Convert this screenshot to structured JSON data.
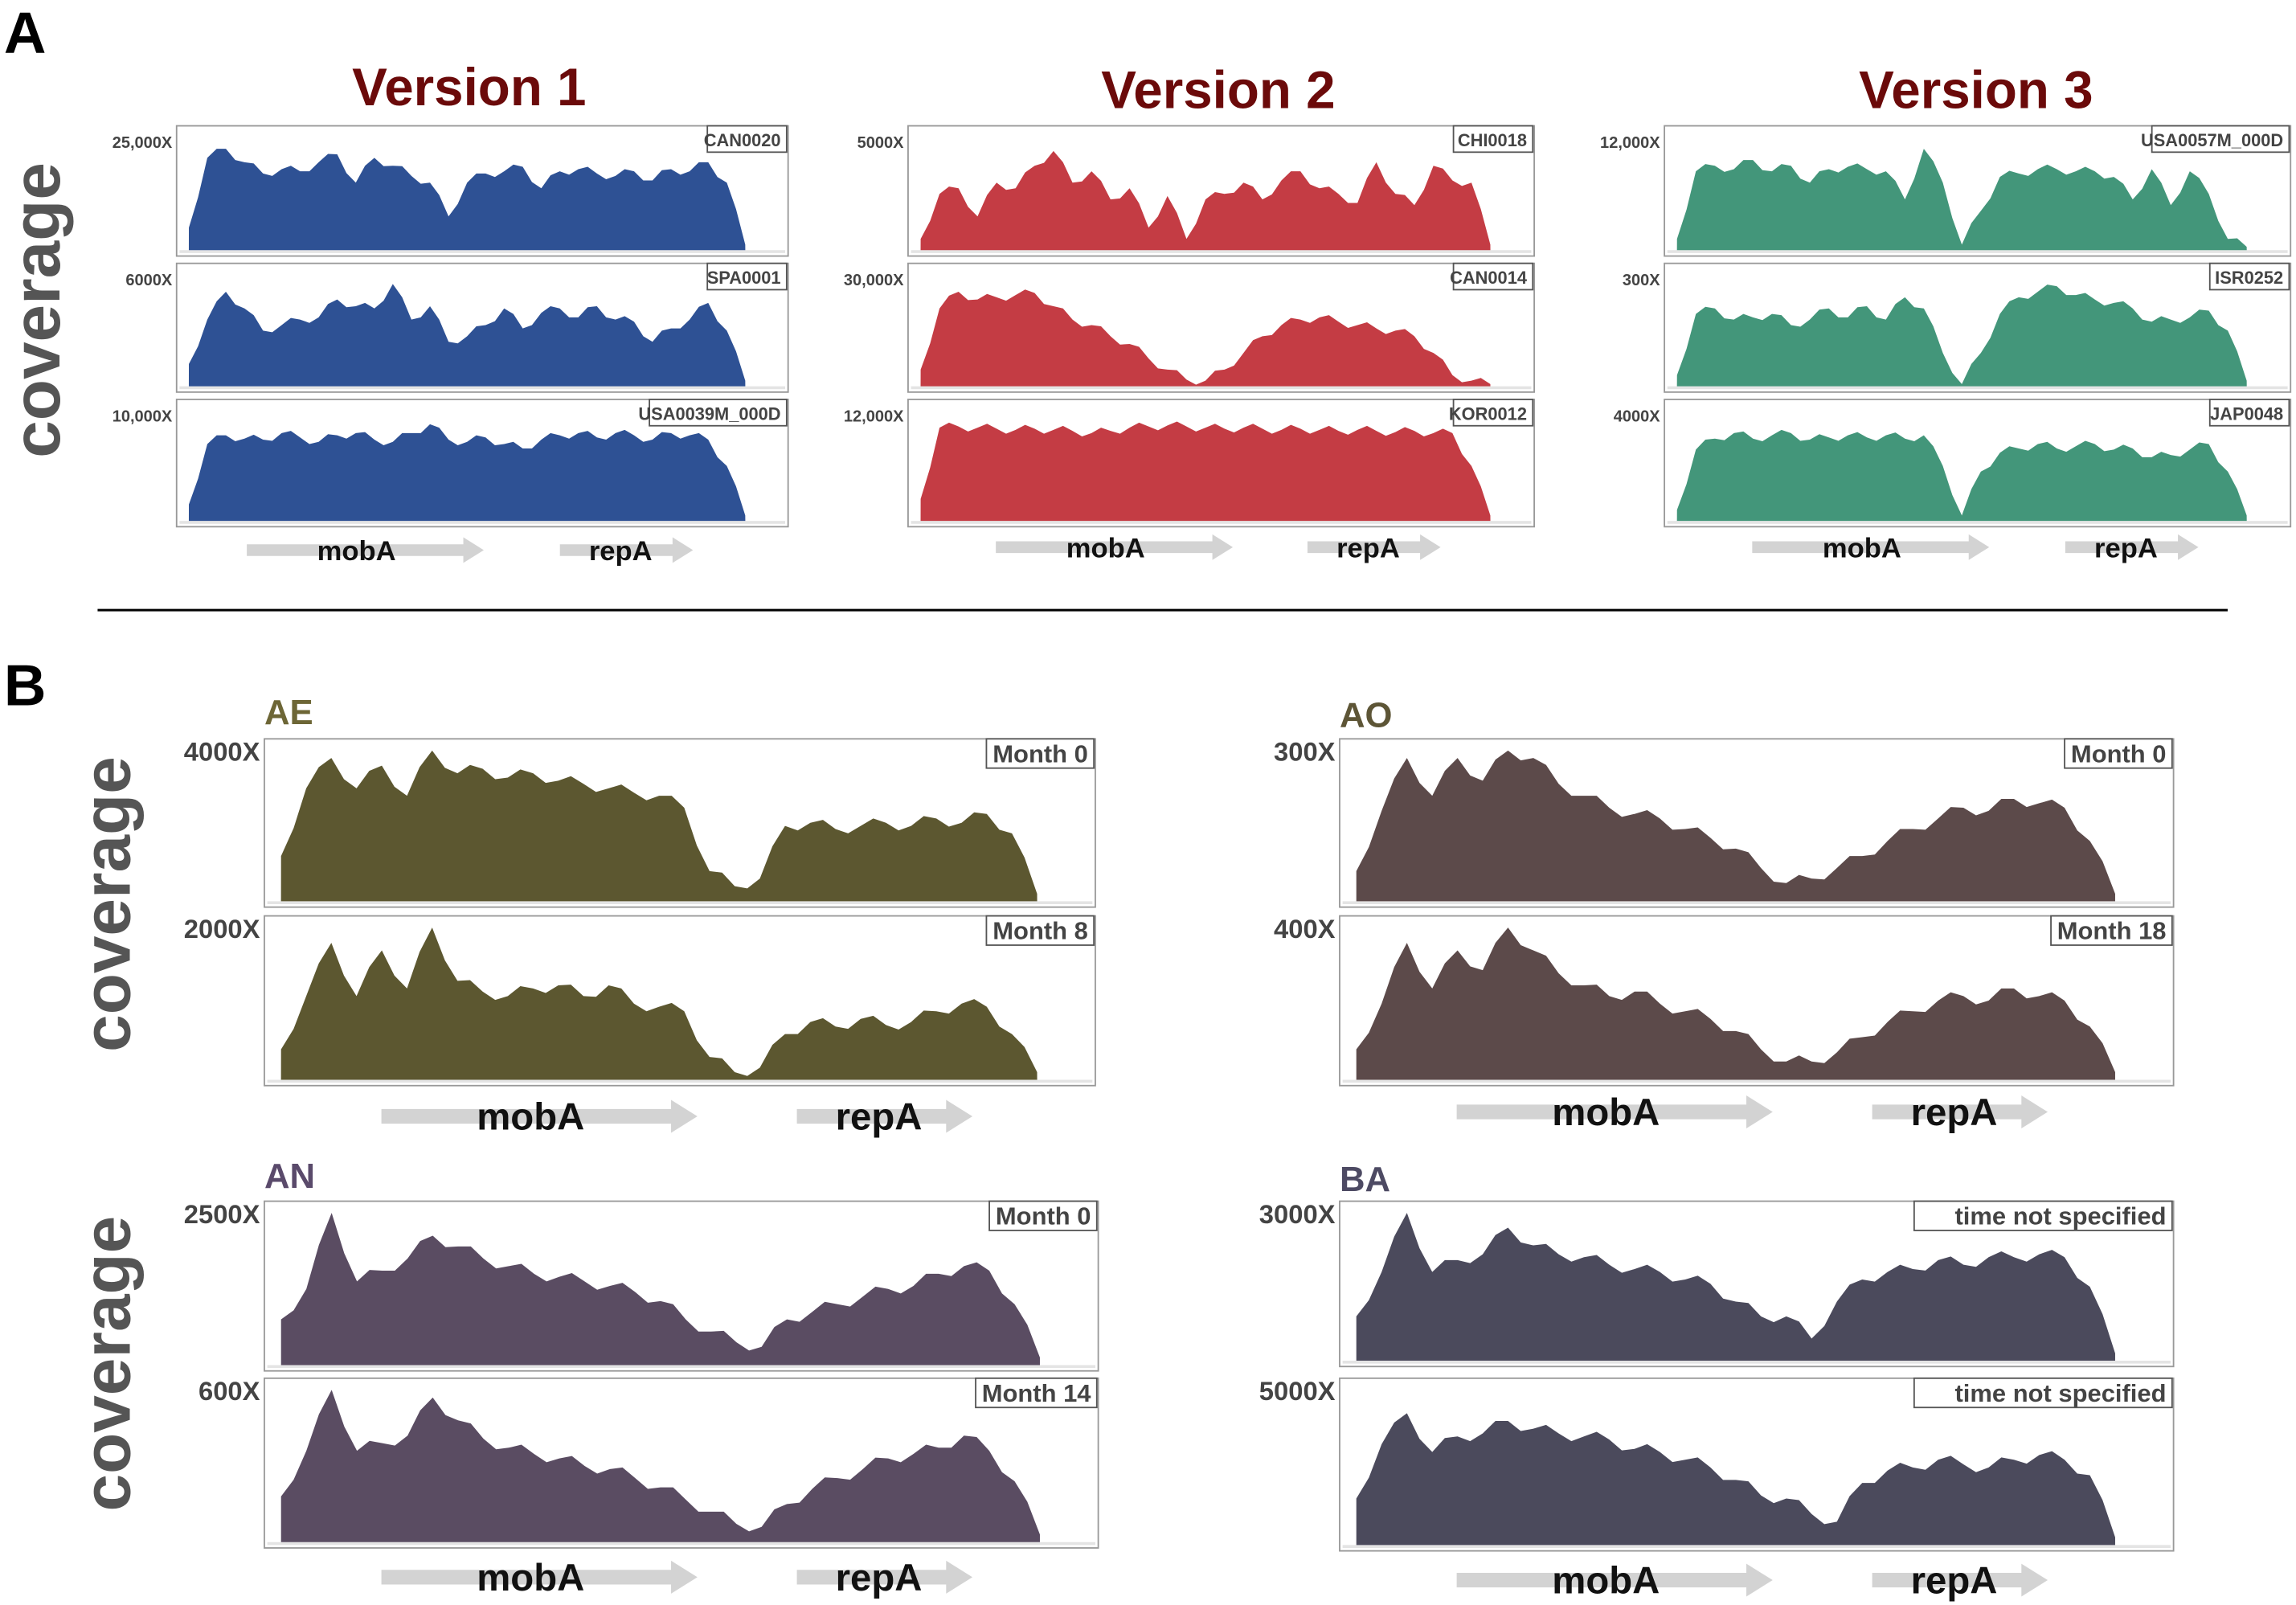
{
  "panel_labels": {
    "a": "A",
    "b": "B"
  },
  "y_axis_label": "coverage",
  "genes": [
    "mobA",
    "repA"
  ],
  "chart_data": [
    {
      "type": "area",
      "panel": "A",
      "title": "Version 1",
      "title_color": "#6b0a0a",
      "color": "#2e5194",
      "tracks": [
        {
          "sample": "CAN0020",
          "ymax_label": "25,000X",
          "profile": [
            0.2,
            0.82,
            0.9,
            0.78,
            0.68,
            0.72,
            0.7,
            0.78,
            0.85,
            0.6,
            0.82,
            0.75,
            0.66,
            0.6,
            0.3,
            0.6,
            0.68,
            0.7,
            0.74,
            0.55,
            0.7,
            0.72,
            0.68,
            0.66,
            0.7,
            0.62,
            0.72,
            0.7,
            0.78,
            0.6,
            0.05
          ]
        },
        {
          "sample": "SPA0001",
          "ymax_label": "6000X",
          "profile": [
            0.2,
            0.6,
            0.85,
            0.7,
            0.5,
            0.55,
            0.6,
            0.62,
            0.78,
            0.72,
            0.7,
            0.92,
            0.6,
            0.72,
            0.4,
            0.45,
            0.55,
            0.7,
            0.52,
            0.66,
            0.7,
            0.62,
            0.72,
            0.6,
            0.58,
            0.4,
            0.52,
            0.6,
            0.75,
            0.5,
            0.05
          ]
        },
        {
          "sample": "USA0039M_000D",
          "ymax_label": "10,000X",
          "profile": [
            0.15,
            0.7,
            0.78,
            0.75,
            0.74,
            0.8,
            0.76,
            0.72,
            0.78,
            0.8,
            0.74,
            0.72,
            0.8,
            0.88,
            0.74,
            0.72,
            0.76,
            0.7,
            0.66,
            0.74,
            0.78,
            0.8,
            0.76,
            0.8,
            0.78,
            0.74,
            0.8,
            0.78,
            0.74,
            0.5,
            0.05
          ]
        }
      ]
    },
    {
      "type": "area",
      "panel": "A",
      "title": "Version 2",
      "title_color": "#6b0a0a",
      "color": "#c43c44",
      "tracks": [
        {
          "sample": "CHI0018",
          "ymax_label": "5000X",
          "profile": [
            0.1,
            0.5,
            0.55,
            0.3,
            0.6,
            0.55,
            0.75,
            0.88,
            0.6,
            0.7,
            0.45,
            0.55,
            0.2,
            0.48,
            0.1,
            0.45,
            0.5,
            0.6,
            0.45,
            0.62,
            0.7,
            0.55,
            0.5,
            0.42,
            0.78,
            0.5,
            0.4,
            0.75,
            0.62,
            0.6,
            0.05
          ]
        },
        {
          "sample": "CAN0014",
          "ymax_label": "30,000X",
          "profile": [
            0.15,
            0.7,
            0.85,
            0.78,
            0.8,
            0.82,
            0.84,
            0.72,
            0.6,
            0.55,
            0.45,
            0.38,
            0.25,
            0.15,
            0.06,
            0.05,
            0.15,
            0.3,
            0.45,
            0.55,
            0.6,
            0.62,
            0.58,
            0.55,
            0.52,
            0.5,
            0.45,
            0.3,
            0.1,
            0.05,
            0.02
          ]
        },
        {
          "sample": "KOR0012",
          "ymax_label": "12,000X",
          "profile": [
            0.2,
            0.85,
            0.86,
            0.85,
            0.84,
            0.83,
            0.84,
            0.83,
            0.82,
            0.8,
            0.82,
            0.85,
            0.86,
            0.87,
            0.86,
            0.85,
            0.84,
            0.85,
            0.84,
            0.83,
            0.84,
            0.83,
            0.82,
            0.83,
            0.82,
            0.81,
            0.82,
            0.8,
            0.8,
            0.5,
            0.05
          ]
        }
      ]
    },
    {
      "type": "area",
      "panel": "A",
      "title": "Version 3",
      "title_color": "#6b0a0a",
      "color": "#43967a",
      "tracks": [
        {
          "sample": "USA0057M_000D",
          "ymax_label": "12,000X",
          "profile": [
            0.1,
            0.7,
            0.75,
            0.72,
            0.8,
            0.7,
            0.75,
            0.6,
            0.72,
            0.74,
            0.72,
            0.7,
            0.45,
            0.9,
            0.6,
            0.05,
            0.35,
            0.65,
            0.68,
            0.72,
            0.72,
            0.7,
            0.7,
            0.65,
            0.45,
            0.72,
            0.4,
            0.7,
            0.5,
            0.1,
            0.03
          ]
        },
        {
          "sample": "ISR0252",
          "ymax_label": "300X",
          "profile": [
            0.1,
            0.65,
            0.7,
            0.6,
            0.62,
            0.65,
            0.55,
            0.6,
            0.7,
            0.62,
            0.72,
            0.6,
            0.8,
            0.7,
            0.3,
            0.02,
            0.3,
            0.65,
            0.8,
            0.85,
            0.9,
            0.82,
            0.78,
            0.75,
            0.7,
            0.58,
            0.6,
            0.62,
            0.68,
            0.5,
            0.05
          ]
        },
        {
          "sample": "JAP0048",
          "ymax_label": "4000X",
          "profile": [
            0.1,
            0.65,
            0.75,
            0.8,
            0.75,
            0.78,
            0.8,
            0.74,
            0.76,
            0.78,
            0.76,
            0.78,
            0.75,
            0.78,
            0.5,
            0.05,
            0.45,
            0.62,
            0.66,
            0.7,
            0.66,
            0.68,
            0.7,
            0.65,
            0.66,
            0.58,
            0.6,
            0.65,
            0.7,
            0.45,
            0.05
          ]
        }
      ]
    },
    {
      "type": "area",
      "panel": "B",
      "title": "AE",
      "title_color": "#6d6636",
      "color": "#5c5730",
      "tracks": [
        {
          "sample": "Month 0",
          "ymax_label": "4000X",
          "profile": [
            0.3,
            0.75,
            0.95,
            0.75,
            0.9,
            0.7,
            1.0,
            0.85,
            0.88,
            0.82,
            0.85,
            0.8,
            0.78,
            0.75,
            0.72,
            0.7,
            0.62,
            0.2,
            0.1,
            0.15,
            0.5,
            0.52,
            0.48,
            0.5,
            0.52,
            0.5,
            0.55,
            0.52,
            0.58,
            0.45,
            0.05
          ]
        },
        {
          "sample": "Month 8",
          "ymax_label": "2000X",
          "profile": [
            0.2,
            0.55,
            0.9,
            0.55,
            0.85,
            0.6,
            1.0,
            0.65,
            0.58,
            0.55,
            0.6,
            0.62,
            0.55,
            0.62,
            0.5,
            0.48,
            0.45,
            0.15,
            0.05,
            0.08,
            0.3,
            0.38,
            0.35,
            0.4,
            0.36,
            0.38,
            0.45,
            0.5,
            0.48,
            0.3,
            0.05
          ]
        }
      ]
    },
    {
      "type": "area",
      "panel": "B",
      "title": "AO",
      "title_color": "#5d5536",
      "color": "#5c4a4a",
      "tracks": [
        {
          "sample": "Month 0",
          "ymax_label": "300X",
          "profile": [
            0.2,
            0.6,
            0.95,
            0.7,
            0.95,
            0.8,
            1.0,
            0.95,
            0.78,
            0.7,
            0.62,
            0.58,
            0.55,
            0.48,
            0.42,
            0.35,
            0.22,
            0.12,
            0.15,
            0.22,
            0.3,
            0.4,
            0.48,
            0.55,
            0.62,
            0.6,
            0.68,
            0.65,
            0.62,
            0.4,
            0.05
          ]
        },
        {
          "sample": "Month 18",
          "ymax_label": "400X",
          "profile": [
            0.2,
            0.5,
            0.9,
            0.6,
            0.85,
            0.72,
            1.0,
            0.85,
            0.7,
            0.62,
            0.55,
            0.58,
            0.5,
            0.45,
            0.4,
            0.32,
            0.2,
            0.12,
            0.12,
            0.18,
            0.28,
            0.38,
            0.45,
            0.52,
            0.55,
            0.52,
            0.6,
            0.55,
            0.52,
            0.35,
            0.05
          ]
        }
      ]
    },
    {
      "type": "area",
      "panel": "B",
      "title": "AN",
      "title_color": "#5a4a6b",
      "color": "#5a4c62",
      "tracks": [
        {
          "sample": "Month 0",
          "ymax_label": "2500X",
          "profile": [
            0.3,
            0.5,
            1.0,
            0.55,
            0.62,
            0.7,
            0.85,
            0.78,
            0.7,
            0.65,
            0.6,
            0.58,
            0.55,
            0.52,
            0.48,
            0.42,
            0.3,
            0.22,
            0.15,
            0.12,
            0.3,
            0.35,
            0.4,
            0.45,
            0.5,
            0.52,
            0.6,
            0.65,
            0.62,
            0.4,
            0.05
          ]
        },
        {
          "sample": "Month 14",
          "ymax_label": "600X",
          "profile": [
            0.3,
            0.6,
            1.0,
            0.6,
            0.65,
            0.7,
            0.95,
            0.8,
            0.68,
            0.62,
            0.58,
            0.55,
            0.5,
            0.48,
            0.42,
            0.36,
            0.28,
            0.2,
            0.12,
            0.1,
            0.25,
            0.35,
            0.42,
            0.48,
            0.55,
            0.58,
            0.62,
            0.7,
            0.6,
            0.4,
            0.05
          ]
        }
      ]
    },
    {
      "type": "area",
      "panel": "B",
      "title": "BA",
      "title_color": "#4d4a63",
      "color": "#4b4a5c",
      "tracks": [
        {
          "sample": "time not specified",
          "ymax_label": "3000X",
          "profile": [
            0.3,
            0.6,
            1.0,
            0.6,
            0.68,
            0.72,
            0.9,
            0.78,
            0.72,
            0.7,
            0.65,
            0.62,
            0.6,
            0.55,
            0.52,
            0.4,
            0.3,
            0.3,
            0.15,
            0.4,
            0.55,
            0.6,
            0.62,
            0.68,
            0.65,
            0.7,
            0.7,
            0.72,
            0.7,
            0.5,
            0.05
          ]
        },
        {
          "sample": "time not specified",
          "ymax_label": "5000X",
          "profile": [
            0.3,
            0.65,
            0.85,
            0.6,
            0.7,
            0.72,
            0.8,
            0.75,
            0.72,
            0.7,
            0.68,
            0.62,
            0.6,
            0.55,
            0.5,
            0.42,
            0.32,
            0.3,
            0.2,
            0.15,
            0.4,
            0.48,
            0.5,
            0.55,
            0.52,
            0.5,
            0.55,
            0.58,
            0.55,
            0.45,
            0.05
          ]
        }
      ]
    }
  ]
}
